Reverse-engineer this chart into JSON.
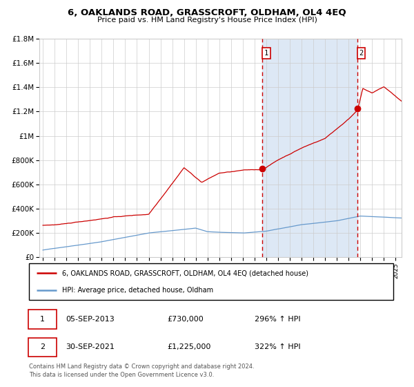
{
  "title_real": "6, OAKLANDS ROAD, GRASSCROFT, OLDHAM, OL4 4EQ",
  "subtitle": "Price paid vs. HM Land Registry's House Price Index (HPI)",
  "hpi_label": "HPI: Average price, detached house, Oldham",
  "property_label": "6, OAKLANDS ROAD, GRASSCROFT, OLDHAM, OL4 4EQ (detached house)",
  "annotation1_date": "05-SEP-2013",
  "annotation1_price": "£730,000",
  "annotation1_hpi": "296% ↑ HPI",
  "annotation2_date": "30-SEP-2021",
  "annotation2_price": "£1,225,000",
  "annotation2_hpi": "322% ↑ HPI",
  "sale1_year": 2013.67,
  "sale1_value": 730000,
  "sale2_year": 2021.75,
  "sale2_value": 1225000,
  "red_color": "#cc0000",
  "blue_color": "#6699cc",
  "shade_color": "#dde8f5",
  "grid_color": "#cccccc",
  "footer": "Contains HM Land Registry data © Crown copyright and database right 2024.\nThis data is licensed under the Open Government Licence v3.0.",
  "ylim_max": 1800000,
  "start_year": 1995,
  "end_year": 2025.5
}
